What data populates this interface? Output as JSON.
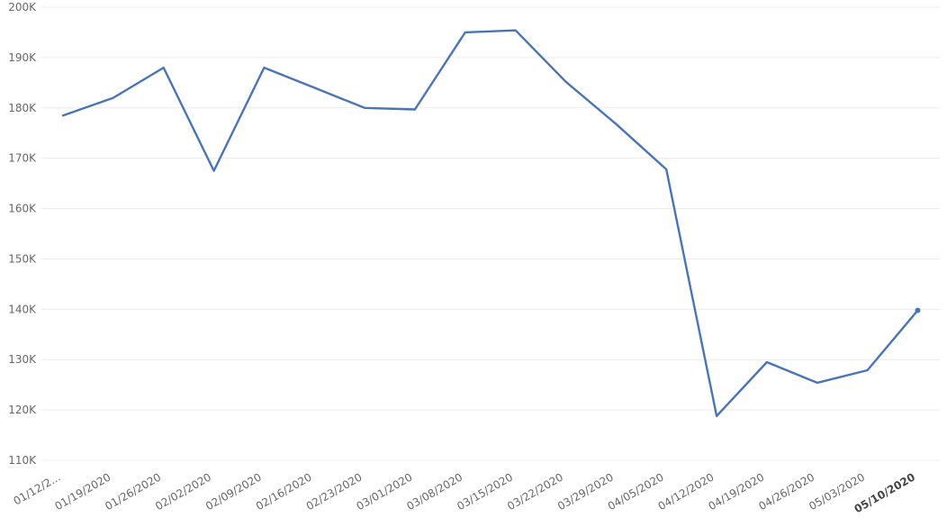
{
  "chart_data": {
    "type": "line",
    "colors": {
      "series": "#4a74b5"
    },
    "grid": true,
    "ylim": [
      110000,
      200000
    ],
    "yticks": [
      {
        "value": 110000,
        "label": "110K"
      },
      {
        "value": 120000,
        "label": "120K"
      },
      {
        "value": 130000,
        "label": "130K"
      },
      {
        "value": 140000,
        "label": "140K"
      },
      {
        "value": 150000,
        "label": "150K"
      },
      {
        "value": 160000,
        "label": "160K"
      },
      {
        "value": 170000,
        "label": "170K"
      },
      {
        "value": 180000,
        "label": "180K"
      },
      {
        "value": 190000,
        "label": "190K"
      },
      {
        "value": 200000,
        "label": "200K"
      }
    ],
    "categories": [
      "01/12/2...",
      "01/19/2020",
      "01/26/2020",
      "02/02/2020",
      "02/09/2020",
      "02/16/2020",
      "02/23/2020",
      "03/01/2020",
      "03/08/2020",
      "03/15/2020",
      "03/22/2020",
      "03/29/2020",
      "04/05/2020",
      "04/12/2020",
      "04/19/2020",
      "04/26/2020",
      "05/03/2020",
      "05/10/2020"
    ],
    "highlighted_category": "05/10/2020",
    "values": [
      178500,
      182000,
      188000,
      167500,
      188000,
      184000,
      180000,
      179700,
      195000,
      195400,
      185200,
      176800,
      167800,
      118800,
      129500,
      125400,
      127900,
      139800
    ]
  }
}
